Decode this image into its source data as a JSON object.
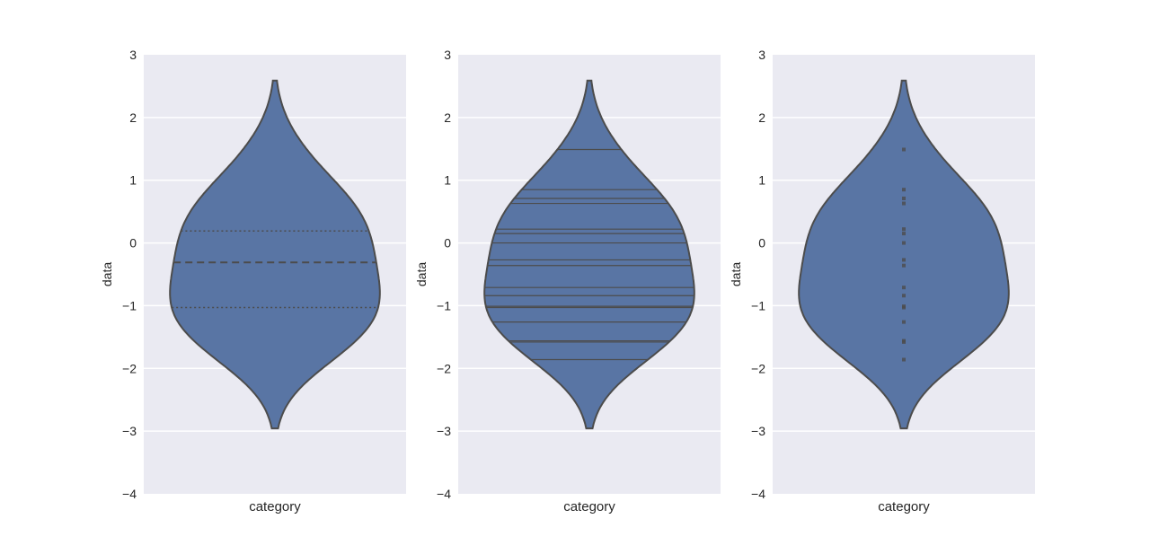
{
  "chart_data": [
    {
      "type": "violin",
      "inner": "quartile",
      "xlabel": "category",
      "ylabel": "data",
      "ylim": [
        -4,
        3
      ],
      "yticks": [
        "3",
        "2",
        "1",
        "0",
        "−1",
        "−2",
        "−3",
        "−4"
      ],
      "quartiles": [
        0.19,
        -0.31,
        -1.03
      ]
    },
    {
      "type": "violin",
      "inner": "stick",
      "xlabel": "category",
      "ylabel": "data",
      "ylim": [
        -4,
        3
      ],
      "yticks": [
        "3",
        "2",
        "1",
        "0",
        "−1",
        "−2",
        "−3",
        "−4"
      ]
    },
    {
      "type": "violin",
      "inner": "point",
      "xlabel": "category",
      "ylabel": "data",
      "ylim": [
        -4,
        3
      ],
      "yticks": [
        "3",
        "2",
        "1",
        "0",
        "−1",
        "−2",
        "−3",
        "−4"
      ]
    }
  ],
  "values": [
    1.49,
    0.85,
    0.71,
    0.63,
    0.22,
    0.15,
    0.0,
    -0.27,
    -0.36,
    -0.71,
    -0.84,
    -1.01,
    -1.03,
    -1.26,
    -1.56,
    -1.58,
    -1.86
  ],
  "colors": {
    "background": "#EAEAF2",
    "violin": "#5975A4",
    "line": "#4C4C4C",
    "grid": "#FFFFFF"
  }
}
